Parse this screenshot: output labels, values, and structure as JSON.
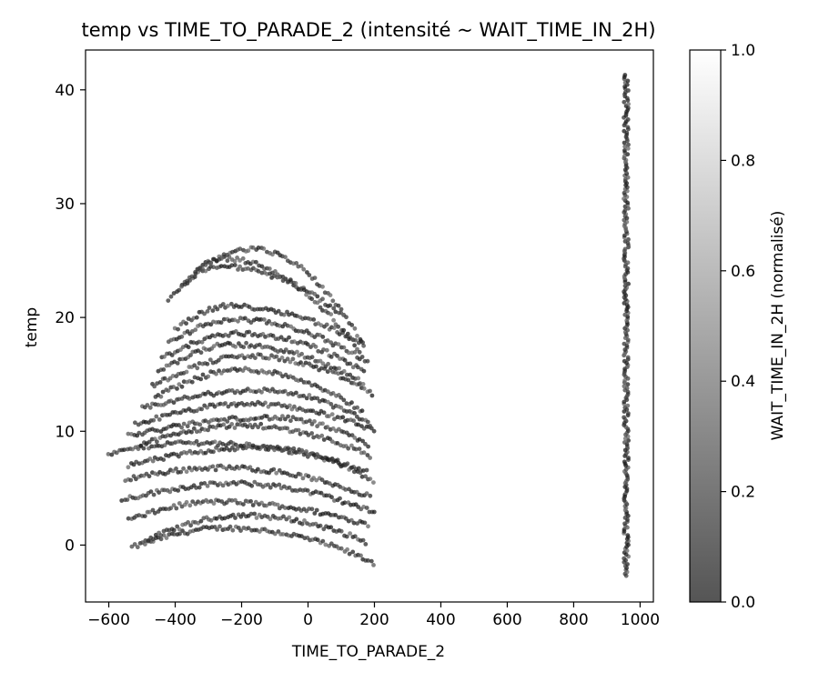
{
  "chart_data": {
    "type": "scatter",
    "title": "temp vs TIME_TO_PARADE_2 (intensité ~ WAIT_TIME_IN_2H)",
    "xlabel": "TIME_TO_PARADE_2",
    "ylabel": "temp",
    "xlim": [
      -670,
      1040
    ],
    "ylim": [
      -5,
      43.5
    ],
    "xticks": [
      -600,
      -400,
      -200,
      0,
      200,
      400,
      600,
      800,
      1000
    ],
    "xtick_labels": [
      "−600",
      "−400",
      "−200",
      "0",
      "200",
      "400",
      "600",
      "800",
      "1000"
    ],
    "yticks": [
      0,
      10,
      20,
      30,
      40
    ],
    "ytick_labels": [
      "0",
      "10",
      "20",
      "30",
      "40"
    ],
    "grid": false,
    "colormap": "gray",
    "colorbar": {
      "label": "WAIT_TIME_IN_2H (normalisé)",
      "range": [
        0.0,
        1.0
      ],
      "ticks": [
        0.0,
        0.2,
        0.4,
        0.6,
        0.8,
        1.0
      ],
      "tick_labels": [
        "0.0",
        "0.2",
        "0.4",
        "0.6",
        "0.8",
        "1.0"
      ],
      "color_low": "#555555",
      "color_high": "#ffffff"
    },
    "point_color": "#222222",
    "point_alpha": 0.75,
    "curves": [
      {
        "x0": -530,
        "x1": 200,
        "y0": -0.2,
        "ypeak": 1.5,
        "xpeak": -250,
        "y1": -1.6
      },
      {
        "x0": -490,
        "x1": 180,
        "y0": 0.4,
        "ypeak": 2.6,
        "xpeak": -200,
        "y1": 0.2
      },
      {
        "x0": -540,
        "x1": 180,
        "y0": 2.2,
        "ypeak": 3.8,
        "xpeak": -280,
        "y1": 1.8
      },
      {
        "x0": -560,
        "x1": 200,
        "y0": 4.0,
        "ypeak": 5.4,
        "xpeak": -220,
        "y1": 2.8
      },
      {
        "x0": -550,
        "x1": 190,
        "y0": 5.8,
        "ypeak": 6.8,
        "xpeak": -260,
        "y1": 4.2
      },
      {
        "x0": -600,
        "x1": 180,
        "y0": 8.0,
        "ypeak": 9.0,
        "xpeak": -350,
        "y1": 6.5
      },
      {
        "x0": -540,
        "x1": 200,
        "y0": 7.0,
        "ypeak": 8.6,
        "xpeak": -150,
        "y1": 5.6
      },
      {
        "x0": -510,
        "x1": 190,
        "y0": 8.8,
        "ypeak": 10.5,
        "xpeak": -200,
        "y1": 7.8
      },
      {
        "x0": -540,
        "x1": 180,
        "y0": 9.6,
        "ypeak": 11.2,
        "xpeak": -120,
        "y1": 8.8
      },
      {
        "x0": -520,
        "x1": 200,
        "y0": 10.6,
        "ypeak": 12.4,
        "xpeak": -180,
        "y1": 10.0
      },
      {
        "x0": -500,
        "x1": 190,
        "y0": 12.0,
        "ypeak": 13.6,
        "xpeak": -150,
        "y1": 10.6
      },
      {
        "x0": -460,
        "x1": 170,
        "y0": 13.0,
        "ypeak": 15.4,
        "xpeak": -200,
        "y1": 11.6
      },
      {
        "x0": -470,
        "x1": 200,
        "y0": 14.0,
        "ypeak": 16.6,
        "xpeak": -180,
        "y1": 13.2
      },
      {
        "x0": -450,
        "x1": 170,
        "y0": 15.2,
        "ypeak": 17.6,
        "xpeak": -230,
        "y1": 14.2
      },
      {
        "x0": -440,
        "x1": 170,
        "y0": 16.4,
        "ypeak": 18.6,
        "xpeak": -210,
        "y1": 15.2
      },
      {
        "x0": -420,
        "x1": 160,
        "y0": 17.8,
        "ypeak": 19.8,
        "xpeak": -220,
        "y1": 16.4
      },
      {
        "x0": -400,
        "x1": 170,
        "y0": 19.0,
        "ypeak": 21.0,
        "xpeak": -240,
        "y1": 17.6
      },
      {
        "x0": -420,
        "x1": 110,
        "y0": 21.5,
        "ypeak": 24.5,
        "xpeak": -270,
        "y1": 20.0
      },
      {
        "x0": -380,
        "x1": 180,
        "y0": 22.6,
        "ypeak": 25.2,
        "xpeak": -260,
        "y1": 16.0
      },
      {
        "x0": -340,
        "x1": 170,
        "y0": 24.0,
        "ypeak": 26.0,
        "xpeak": -170,
        "y1": 17.5
      }
    ],
    "vertical_band": {
      "x": 958,
      "y_min": -2.7,
      "y_max": 41.3
    }
  }
}
